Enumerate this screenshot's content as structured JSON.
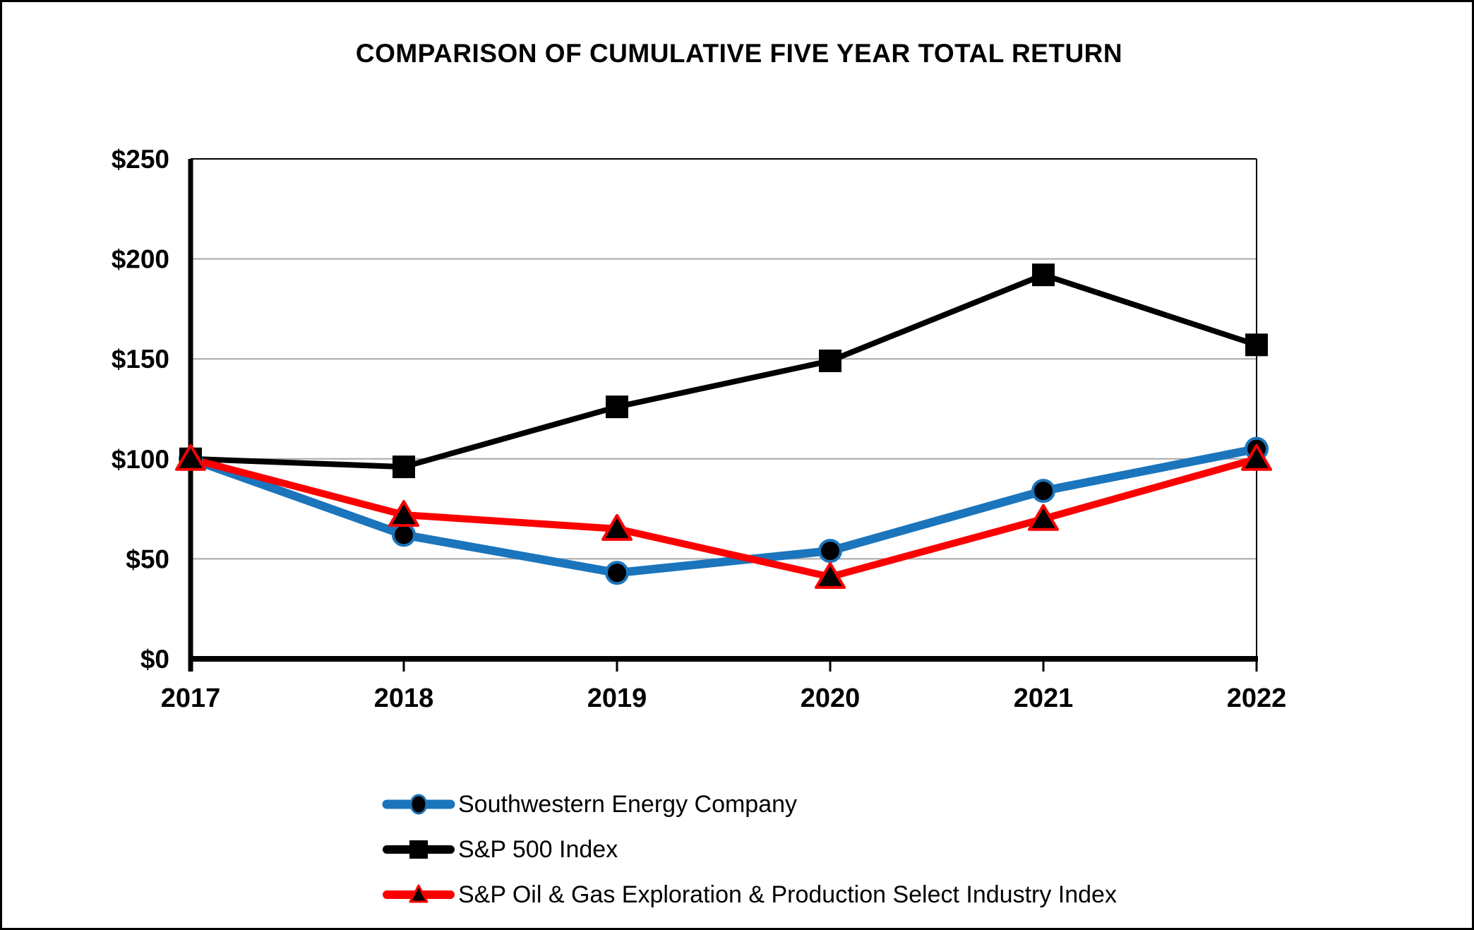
{
  "chart_data": {
    "type": "line",
    "title": "COMPARISON OF CUMULATIVE FIVE YEAR TOTAL RETURN",
    "xlabel": "",
    "ylabel": "",
    "categories": [
      "2017",
      "2018",
      "2019",
      "2020",
      "2021",
      "2022"
    ],
    "y_tick_labels": [
      "$0",
      "$50",
      "$100",
      "$150",
      "$200",
      "$250"
    ],
    "ylim": [
      0,
      250
    ],
    "grid": "horizontal",
    "legend_position": "bottom-left",
    "series": [
      {
        "name": "Southwestern Energy Company",
        "marker": "circle",
        "color": "#1B75BC",
        "marker_fill": "#000000",
        "values": [
          100,
          62,
          43,
          54,
          84,
          105
        ]
      },
      {
        "name": "S&P 500 Index",
        "marker": "square",
        "color": "#000000",
        "marker_fill": "#000000",
        "values": [
          100,
          96,
          126,
          149,
          192,
          157
        ]
      },
      {
        "name": "S&P Oil & Gas Exploration & Production Select Industry Index",
        "marker": "triangle",
        "color": "#FA0000",
        "marker_fill": "#000000",
        "values": [
          100,
          72,
          65,
          41,
          70,
          100
        ]
      }
    ],
    "colors": {
      "axis": "#000000",
      "gridline": "#A8A8A8",
      "background": "#FFFFFF"
    }
  }
}
